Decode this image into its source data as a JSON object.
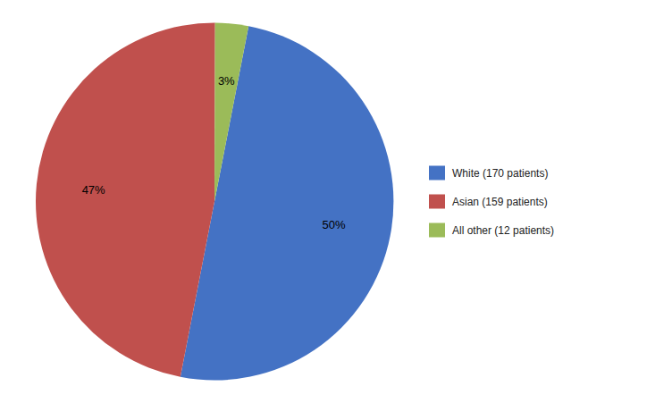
{
  "chart_data": {
    "type": "pie",
    "categories": [
      "White (170 patients)",
      "Asian (159 patients)",
      "All other (12 patients)"
    ],
    "values": [
      50,
      47,
      3
    ],
    "value_labels": [
      "50%",
      "47%",
      "3%"
    ],
    "colors": [
      "#4472C4",
      "#C0504D",
      "#9BBB59"
    ],
    "data_labels": true,
    "legend": "right"
  }
}
